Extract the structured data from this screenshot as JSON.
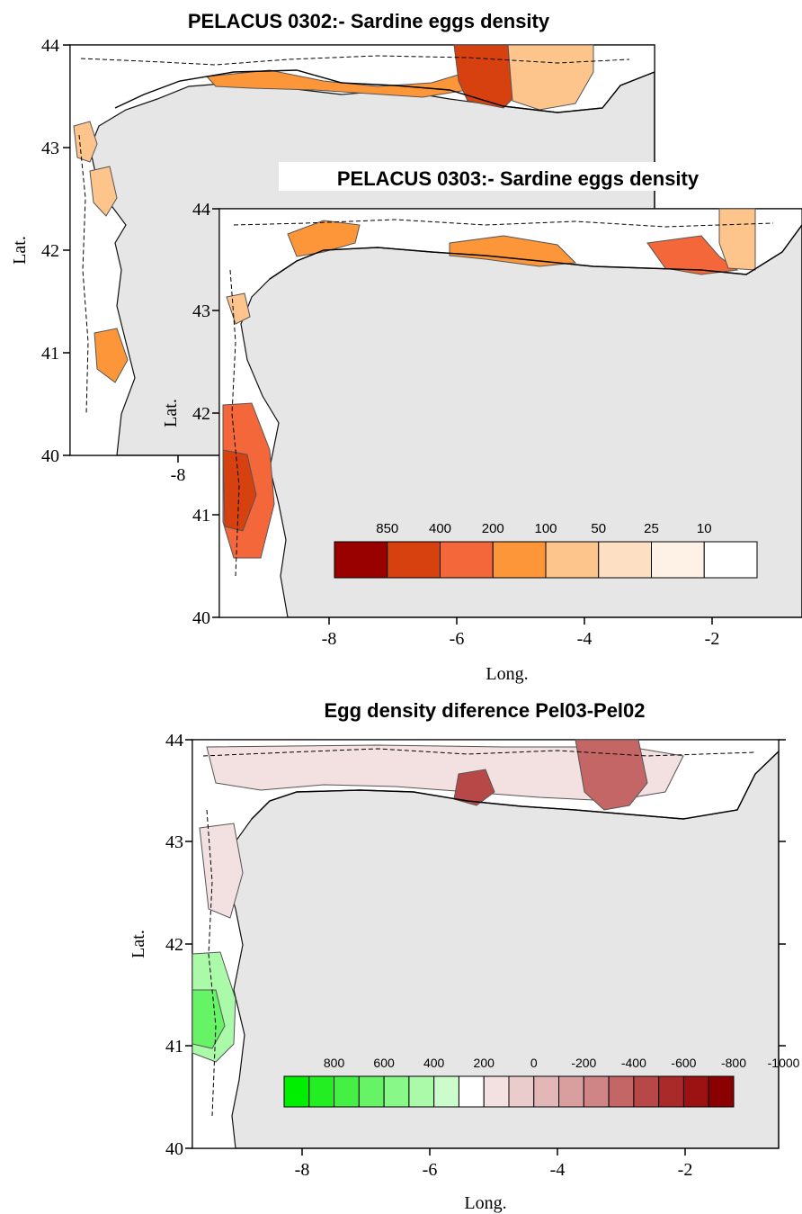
{
  "maps": {
    "pel02": {
      "title": "PELACUS 0302:- Sardine eggs density",
      "ylabel": "Lat.",
      "xticks": [
        "-8"
      ],
      "yticks": [
        "44",
        "43",
        "42",
        "41",
        "40"
      ]
    },
    "pel03": {
      "title": "PELACUS 0303:- Sardine eggs density",
      "ylabel": "Lat.",
      "xlabel": "Long.",
      "xticks": [
        "-8",
        "-6",
        "-4",
        "-2"
      ],
      "yticks": [
        "44",
        "43",
        "42",
        "41",
        "40"
      ],
      "legend": {
        "labels": [
          "850",
          "400",
          "200",
          "100",
          "50",
          "25",
          "10"
        ],
        "colors": [
          "#990000",
          "#d7400f",
          "#f4673a",
          "#fc9638",
          "#fdc48c",
          "#fde0c4",
          "#fef2e6",
          "#ffffff"
        ]
      }
    },
    "diff": {
      "title": "Egg density diference Pel03-Pel02",
      "ylabel": "Lat.",
      "xlabel": "Long.",
      "xticks": [
        "-8",
        "-6",
        "-4",
        "-2"
      ],
      "yticks": [
        "44",
        "43",
        "42",
        "41",
        "40"
      ],
      "legend": {
        "labels": [
          "800",
          "600",
          "400",
          "200",
          "0",
          "-200",
          "-400",
          "-600",
          "-800",
          "-1000"
        ],
        "colors": [
          "#00ee00",
          "#22ee22",
          "#44f044",
          "#66f466",
          "#88f888",
          "#aafaaa",
          "#ccfccc",
          "#ffffff",
          "#f3e0e0",
          "#ebcccc",
          "#e3b7b7",
          "#d99f9f",
          "#cf8585",
          "#c46666",
          "#b84848",
          "#aa2a2a",
          "#9c1212",
          "#8b0000"
        ]
      }
    }
  },
  "colors": {
    "sea_land": "#e6e6e6",
    "axis": "#000000"
  }
}
